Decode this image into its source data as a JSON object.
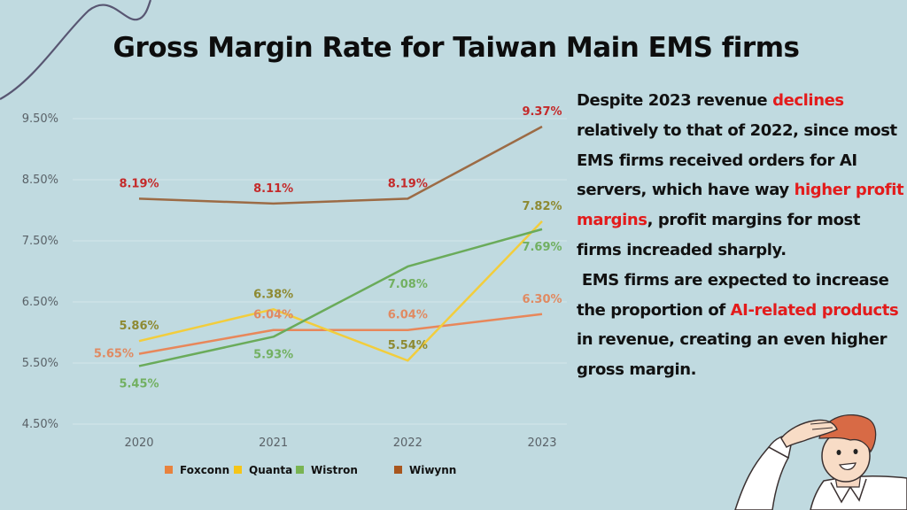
{
  "title": "Gross Margin Rate for Taiwan Main EMS firms",
  "chart_data": {
    "type": "line",
    "title": "Gross Margin Rate for Taiwan Main EMS firms",
    "xlabel": "",
    "ylabel": "",
    "categories": [
      "2020",
      "2021",
      "2022",
      "2023"
    ],
    "ylim": [
      4.5,
      9.5
    ],
    "yticks": [
      "4.50%",
      "5.50%",
      "6.50%",
      "7.50%",
      "8.50%",
      "9.50%"
    ],
    "ytick_values": [
      4.5,
      5.5,
      6.5,
      7.5,
      8.5,
      9.5
    ],
    "grid": true,
    "legend_position": "bottom-center",
    "series": [
      {
        "name": "Foxconn",
        "color": "#e8875a",
        "label_color": "#e08a62",
        "values": [
          5.65,
          6.04,
          6.04,
          6.3
        ],
        "labels": [
          "5.65%",
          "6.04%",
          "6.04%",
          "6.30%"
        ],
        "label_pos": [
          "left",
          "above",
          "above",
          "above"
        ]
      },
      {
        "name": "Quanta",
        "color": "#f2cd3c",
        "label_color": "#8e8a32",
        "values": [
          5.86,
          6.38,
          5.54,
          7.82
        ],
        "labels": [
          "5.86%",
          "6.38%",
          "5.54%",
          "7.82%"
        ],
        "label_pos": [
          "above",
          "above",
          "above",
          "above"
        ]
      },
      {
        "name": "Wistron",
        "color": "#6aab5a",
        "label_color": "#72b061",
        "values": [
          5.45,
          5.93,
          7.08,
          7.69
        ],
        "labels": [
          "5.45%",
          "5.93%",
          "7.08%",
          "7.69%"
        ],
        "label_pos": [
          "below",
          "below",
          "below",
          "below"
        ]
      },
      {
        "name": "Wiwynn",
        "color": "#9c6b45",
        "label_color": "#c42a2a",
        "values": [
          8.19,
          8.11,
          8.19,
          9.37
        ],
        "labels": [
          "8.19%",
          "8.11%",
          "8.19%",
          "9.37%"
        ],
        "label_pos": [
          "above",
          "above",
          "above",
          "above"
        ]
      }
    ],
    "legend_colors": [
      "#e8823e",
      "#f5c518",
      "#79b452",
      "#a8561e"
    ]
  },
  "description": {
    "paragraph1": [
      {
        "text": "Despite 2023 revenue ",
        "highlight": false
      },
      {
        "text": "declines",
        "highlight": true
      },
      {
        "text": " relatively to that of 2022, since most EMS firms received orders for AI servers, which have way ",
        "highlight": false
      },
      {
        "text": "higher profit margins",
        "highlight": true
      },
      {
        "text": ", profit margins for most firms increaded sharply.",
        "highlight": false
      }
    ],
    "paragraph2": [
      {
        "text": " EMS firms are expected to increase the proportion of ",
        "highlight": false
      },
      {
        "text": "AI-related products",
        "highlight": true
      },
      {
        "text": " in revenue, creating an even higher gross margin.",
        "highlight": false
      }
    ],
    "highlight_color": "#e31b1b"
  },
  "illustration": "person-shading-eyes-illustration"
}
